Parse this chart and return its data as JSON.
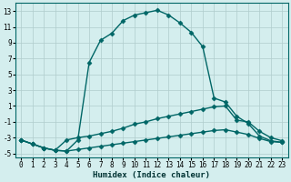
{
  "xlabel": "Humidex (Indice chaleur)",
  "bg_color": "#d4eeee",
  "grid_color": "#b0cccc",
  "line_color": "#006666",
  "xlim": [
    -0.5,
    23.5
  ],
  "ylim": [
    -5.5,
    14.0
  ],
  "xticks": [
    0,
    1,
    2,
    3,
    4,
    5,
    6,
    7,
    8,
    9,
    10,
    11,
    12,
    13,
    14,
    15,
    16,
    17,
    18,
    19,
    20,
    21,
    22,
    23
  ],
  "yticks": [
    -5,
    -3,
    -1,
    1,
    3,
    5,
    7,
    9,
    11,
    13
  ],
  "series": [
    {
      "x": [
        0,
        1,
        2,
        3,
        4,
        5,
        6,
        7,
        8,
        9,
        10,
        11,
        12,
        13,
        14,
        15,
        16,
        17,
        18,
        19,
        20,
        21,
        22,
        23
      ],
      "y": [
        -3.3,
        -3.8,
        -4.3,
        -4.6,
        -4.7,
        -3.3,
        6.5,
        9.3,
        10.2,
        11.8,
        12.5,
        12.8,
        13.1,
        12.5,
        11.5,
        10.3,
        8.5,
        2.0,
        1.5,
        -0.3,
        -1.2,
        -2.8,
        -3.4,
        -3.6
      ],
      "marker": "D",
      "markersize": 2.5,
      "linewidth": 1.0
    },
    {
      "x": [
        0,
        1,
        2,
        3,
        4,
        5,
        6,
        7,
        8,
        9,
        10,
        11,
        12,
        13,
        14,
        15,
        16,
        17,
        18,
        19,
        20,
        21,
        22,
        23
      ],
      "y": [
        -3.3,
        -3.8,
        -4.3,
        -4.6,
        -3.3,
        -3.0,
        -2.8,
        -2.5,
        -2.2,
        -1.8,
        -1.3,
        -1.0,
        -0.6,
        -0.3,
        0.0,
        0.3,
        0.6,
        0.9,
        1.0,
        -0.8,
        -1.0,
        -2.2,
        -3.0,
        -3.4
      ],
      "marker": "D",
      "markersize": 2.5,
      "linewidth": 1.0
    },
    {
      "x": [
        0,
        1,
        2,
        3,
        4,
        5,
        6,
        7,
        8,
        9,
        10,
        11,
        12,
        13,
        14,
        15,
        16,
        17,
        18,
        19,
        20,
        21,
        22,
        23
      ],
      "y": [
        -3.3,
        -3.8,
        -4.3,
        -4.6,
        -4.7,
        -4.5,
        -4.3,
        -4.1,
        -3.9,
        -3.7,
        -3.5,
        -3.3,
        -3.1,
        -2.9,
        -2.7,
        -2.5,
        -2.3,
        -2.1,
        -2.0,
        -2.3,
        -2.6,
        -3.1,
        -3.5,
        -3.6
      ],
      "marker": "D",
      "markersize": 2.5,
      "linewidth": 1.0
    }
  ]
}
